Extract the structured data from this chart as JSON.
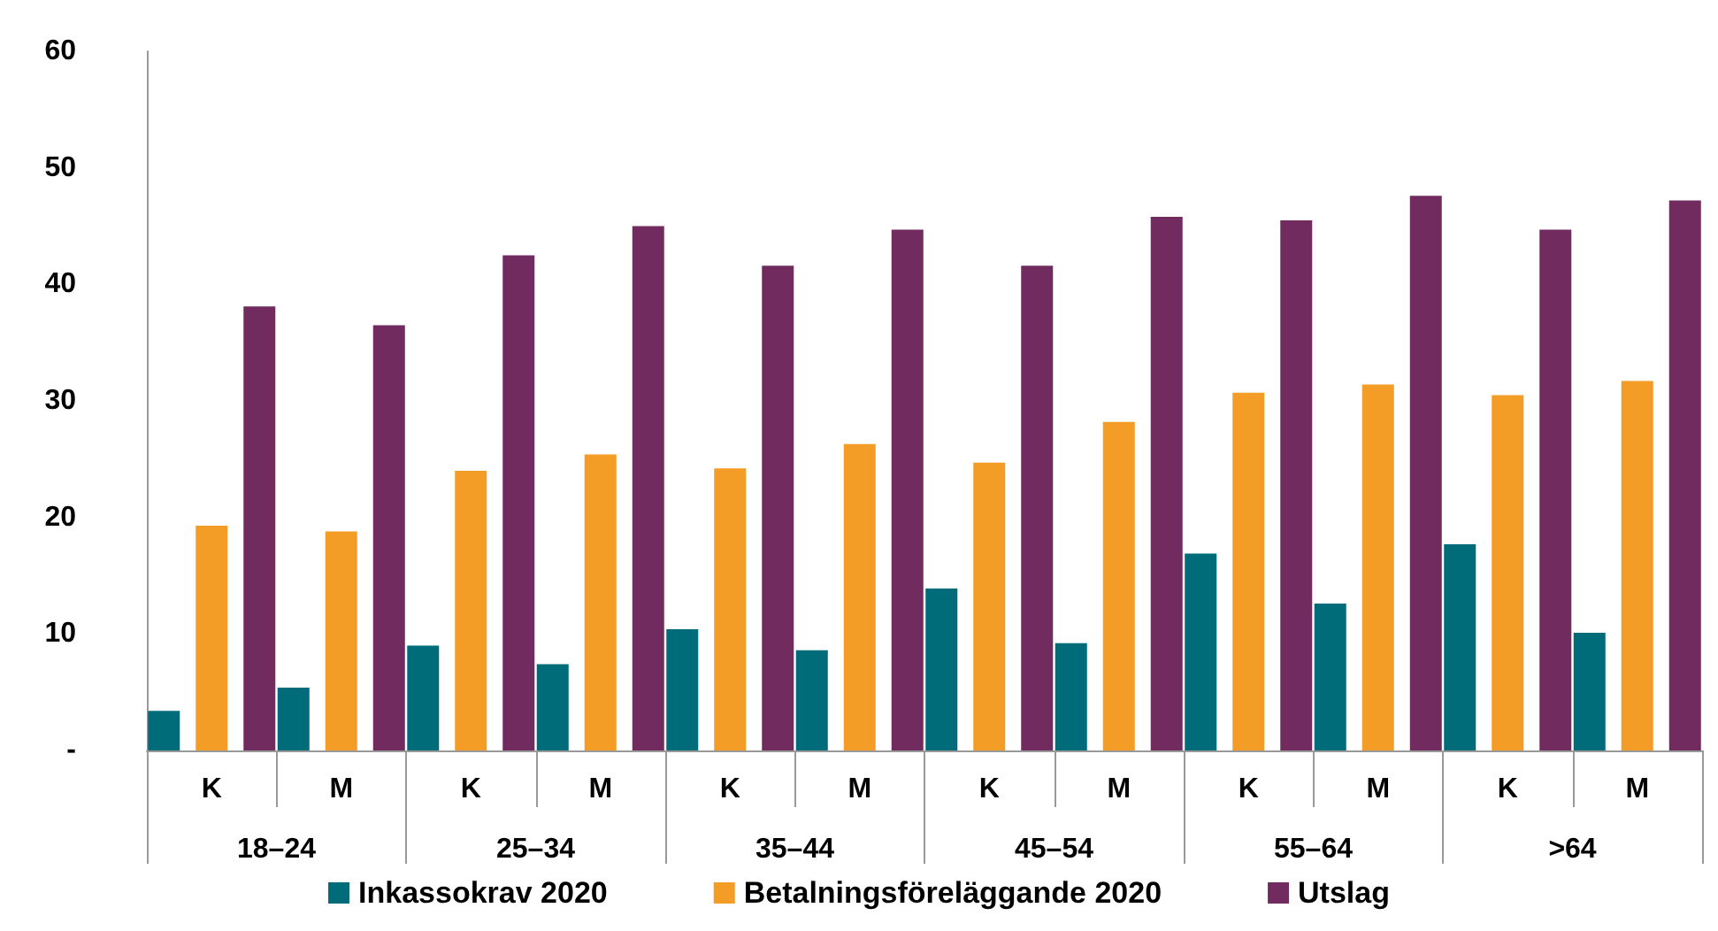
{
  "chart_data": {
    "type": "bar",
    "categories": [
      "K",
      "M",
      "K",
      "M",
      "K",
      "M",
      "K",
      "M",
      "K",
      "M",
      "K",
      "M"
    ],
    "annotations": [
      "18–24",
      "25–34",
      "35–44",
      "45–54",
      "55–64",
      ">64"
    ],
    "series": [
      {
        "name": "Inkassokrav 2020",
        "color": "#006c7a",
        "values": [
          3.4,
          5.4,
          9.0,
          7.4,
          10.4,
          8.6,
          13.9,
          9.2,
          16.9,
          12.6,
          17.7,
          10.1
        ]
      },
      {
        "name": "Betalningsföreläggande 2020",
        "color": "#f39c26",
        "values": [
          19.3,
          18.8,
          24.0,
          25.4,
          24.2,
          26.3,
          24.7,
          28.2,
          30.7,
          31.4,
          30.5,
          31.7
        ]
      },
      {
        "name": "Utslag",
        "color": "#722b5f",
        "values": [
          38.1,
          36.5,
          42.5,
          45.0,
          41.6,
          44.7,
          41.6,
          45.8,
          45.5,
          47.6,
          44.7,
          47.2
        ]
      }
    ],
    "ylim": [
      0,
      60
    ],
    "yticks": [
      {
        "value": 0,
        "label": "-"
      },
      10,
      20,
      30,
      40,
      50,
      60
    ],
    "grid": false,
    "legend": "bottom"
  }
}
